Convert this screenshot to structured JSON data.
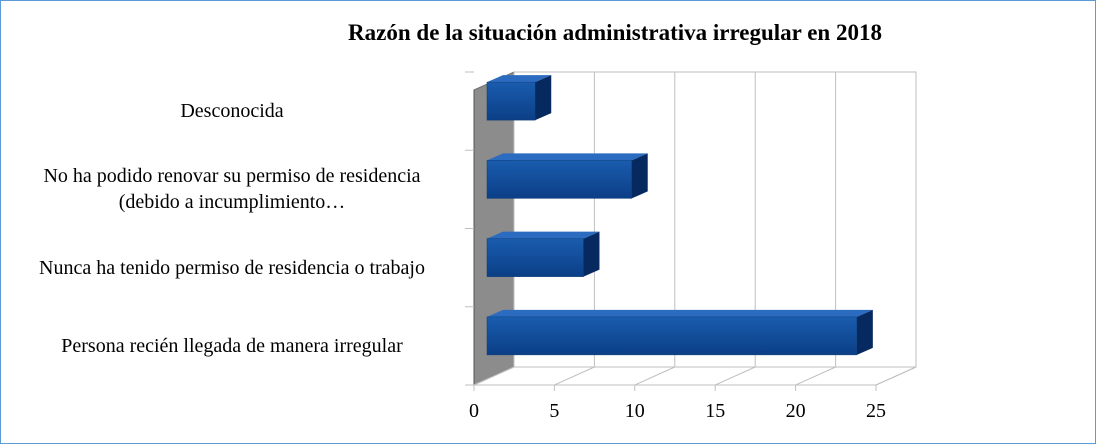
{
  "chart_data": {
    "type": "bar",
    "orientation": "horizontal",
    "title": "Razón de la situación administrativa irregular en 2018",
    "categories": [
      "Persona recién llegada de manera irregular",
      "Nunca ha tenido permiso de residencia o trabajo",
      "No ha podido renovar su permiso de residencia (debido a incumplimiento…",
      "Desconocida"
    ],
    "values": [
      23,
      6,
      9,
      3
    ],
    "color": "#0d4a9a",
    "xlim": [
      0,
      25
    ],
    "xticks": [
      0,
      5,
      10,
      15,
      20,
      25
    ],
    "grid": true
  }
}
